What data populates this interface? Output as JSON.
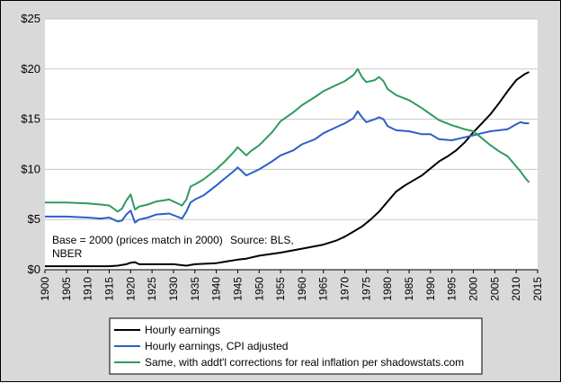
{
  "chart_data": {
    "type": "line",
    "title": "",
    "xlabel": "",
    "ylabel": "",
    "xlim": [
      1900,
      2015
    ],
    "ylim": [
      0,
      25
    ],
    "grid": true,
    "legend_position": "bottom-center",
    "x_ticks": [
      1900,
      1905,
      1910,
      1915,
      1920,
      1925,
      1930,
      1935,
      1940,
      1945,
      1950,
      1955,
      1960,
      1965,
      1970,
      1975,
      1980,
      1985,
      1990,
      1995,
      2000,
      2005,
      2010,
      2015
    ],
    "y_ticks": [
      0,
      5,
      10,
      15,
      20,
      25
    ],
    "y_tick_labels": [
      "$0",
      "$5",
      "$10",
      "$15",
      "$20",
      "$25"
    ],
    "annotations": [
      "Base = 2000 (prices match in 2000)",
      "Source: BLS,",
      "NBER"
    ],
    "series": [
      {
        "name": "Hourly earnings",
        "color": "#000000",
        "x": [
          1900,
          1905,
          1910,
          1915,
          1917,
          1919,
          1920,
          1921,
          1922,
          1925,
          1930,
          1932,
          1933,
          1935,
          1940,
          1942,
          1945,
          1947,
          1950,
          1955,
          1960,
          1965,
          1968,
          1970,
          1972,
          1974,
          1976,
          1978,
          1980,
          1982,
          1984,
          1986,
          1988,
          1990,
          1992,
          1994,
          1996,
          1998,
          2000,
          2002,
          2004,
          2006,
          2008,
          2010,
          2012,
          2013
        ],
        "values": [
          0.35,
          0.35,
          0.35,
          0.35,
          0.4,
          0.55,
          0.7,
          0.75,
          0.55,
          0.55,
          0.55,
          0.45,
          0.4,
          0.55,
          0.65,
          0.8,
          1.0,
          1.1,
          1.4,
          1.7,
          2.1,
          2.5,
          2.9,
          3.3,
          3.8,
          4.3,
          5.0,
          5.8,
          6.8,
          7.8,
          8.4,
          8.9,
          9.4,
          10.1,
          10.8,
          11.3,
          11.9,
          12.7,
          13.7,
          14.6,
          15.5,
          16.6,
          17.8,
          18.9,
          19.5,
          19.7
        ]
      },
      {
        "name": "Hourly earnings, CPI adjusted",
        "color": "#2a60c8",
        "x": [
          1900,
          1905,
          1910,
          1913,
          1915,
          1917,
          1918,
          1919,
          1920,
          1921,
          1922,
          1924,
          1926,
          1929,
          1932,
          1933,
          1934,
          1935,
          1937,
          1940,
          1942,
          1944,
          1945,
          1946,
          1947,
          1948,
          1950,
          1953,
          1955,
          1958,
          1960,
          1963,
          1965,
          1968,
          1970,
          1972,
          1973,
          1974,
          1975,
          1977,
          1978,
          1979,
          1980,
          1982,
          1985,
          1988,
          1990,
          1992,
          1995,
          1998,
          2000,
          2002,
          2004,
          2006,
          2008,
          2010,
          2011,
          2012,
          2013
        ],
        "values": [
          5.3,
          5.3,
          5.2,
          5.1,
          5.2,
          4.8,
          4.9,
          5.5,
          5.9,
          4.7,
          5.0,
          5.2,
          5.5,
          5.6,
          5.1,
          5.8,
          6.7,
          7.0,
          7.4,
          8.4,
          9.1,
          9.8,
          10.2,
          9.8,
          9.4,
          9.6,
          10.0,
          10.8,
          11.4,
          11.9,
          12.5,
          13.0,
          13.6,
          14.2,
          14.6,
          15.1,
          15.8,
          15.2,
          14.7,
          15.0,
          15.2,
          15.0,
          14.3,
          13.9,
          13.8,
          13.5,
          13.5,
          13.0,
          12.9,
          13.2,
          13.4,
          13.6,
          13.8,
          13.9,
          14.0,
          14.5,
          14.7,
          14.6,
          14.6
        ]
      },
      {
        "name": "Same, with addt'l corrections for real inflation per shadowstats.com",
        "color": "#2e9b5f",
        "x": [
          1900,
          1905,
          1910,
          1913,
          1915,
          1917,
          1918,
          1919,
          1920,
          1921,
          1922,
          1924,
          1926,
          1929,
          1932,
          1933,
          1934,
          1935,
          1937,
          1940,
          1942,
          1944,
          1945,
          1946,
          1947,
          1948,
          1950,
          1953,
          1955,
          1958,
          1960,
          1963,
          1965,
          1968,
          1970,
          1972,
          1973,
          1974,
          1975,
          1977,
          1978,
          1979,
          1980,
          1982,
          1985,
          1988,
          1990,
          1992,
          1995,
          1998,
          2000,
          2002,
          2004,
          2006,
          2008,
          2010,
          2011,
          2012,
          2013
        ],
        "values": [
          6.7,
          6.7,
          6.6,
          6.5,
          6.4,
          5.8,
          6.1,
          6.9,
          7.5,
          6.0,
          6.3,
          6.5,
          6.8,
          7.0,
          6.4,
          7.0,
          8.3,
          8.5,
          9.0,
          10.0,
          10.8,
          11.7,
          12.2,
          11.8,
          11.4,
          11.8,
          12.4,
          13.7,
          14.8,
          15.7,
          16.4,
          17.2,
          17.8,
          18.4,
          18.8,
          19.4,
          20.0,
          19.2,
          18.7,
          18.9,
          19.2,
          18.8,
          18.0,
          17.4,
          16.9,
          16.1,
          15.5,
          14.9,
          14.4,
          14.0,
          13.8,
          13.1,
          12.4,
          11.8,
          11.3,
          10.3,
          9.8,
          9.2,
          8.7
        ]
      }
    ]
  }
}
